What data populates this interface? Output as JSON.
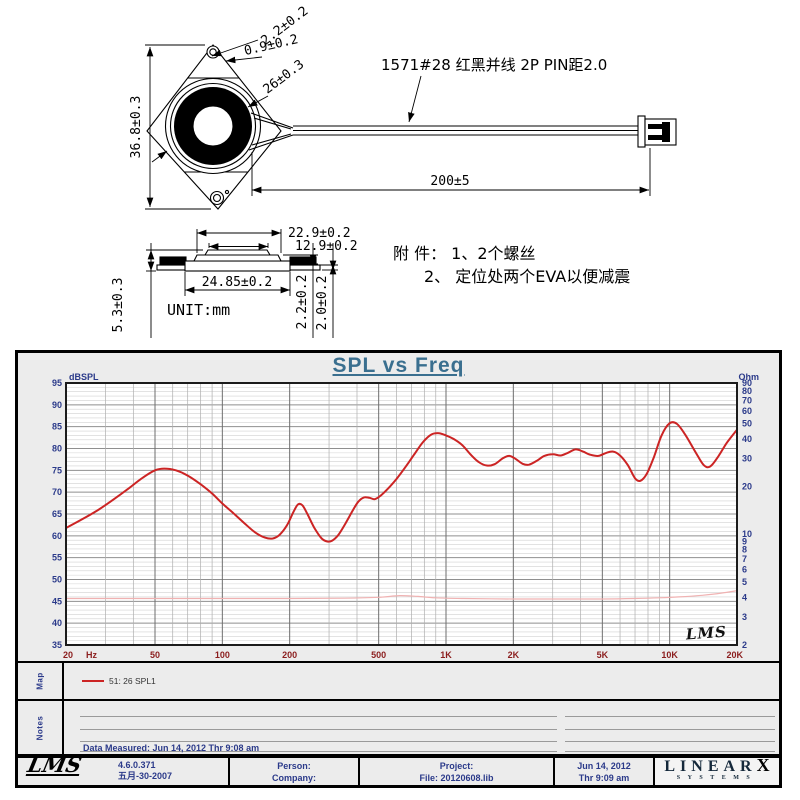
{
  "drawing": {
    "front": {
      "dim_height": "36.8±0.3",
      "dim_tab": "2.2±0.2",
      "dim_hole": "0.9±0.2",
      "dim_ring": "26±0.3",
      "dim_wire_length": "200±5",
      "wire_label": "1571#28 红黑并线 2P  PIN距2.0"
    },
    "side": {
      "dim_top_width": "22.9±0.2",
      "dim_dome_width": "12.9±0.2",
      "dim_base_width": "24.85±0.2",
      "dim_total_height": "5.3±0.3",
      "dim_dome_height": "2.2±0.2",
      "dim_base_height": "2.0±0.2",
      "unit": "UNIT:mm"
    },
    "attachment_line1": "附 件：  1、2个螺丝",
    "attachment_line2": "2、 定位处两个EVA以便减震"
  },
  "map_row": {
    "label": "Map"
  },
  "notes_row": {
    "label": "Notes",
    "data_measured": "Data Measured: Jun 14, 2012  Thr  9:08 am"
  },
  "footer": {
    "logo": "LMS",
    "version": "4.6.0.371",
    "version_date": "五月-30-2007",
    "person": "Person:",
    "company": "Company:",
    "project": "Project:",
    "file": "File: 20120608.lib",
    "date_line1": "Jun 14, 2012",
    "date_line2": "Thr  9:09 am",
    "brand_main": "LINEAR",
    "brand_x": "X",
    "brand_sub": "SYSTEMS"
  },
  "chart_data": {
    "type": "line",
    "title": "SPL vs Freq",
    "watermark": "LMS",
    "x_axis": {
      "scale": "log",
      "min": 20,
      "max": 20000,
      "unit": "Hz",
      "ticks": [
        {
          "v": 20,
          "label": "20"
        },
        {
          "v": 50,
          "label": "50"
        },
        {
          "v": 100,
          "label": "100"
        },
        {
          "v": 200,
          "label": "200"
        },
        {
          "v": 500,
          "label": "500"
        },
        {
          "v": 1000,
          "label": "1K"
        },
        {
          "v": 2000,
          "label": "2K"
        },
        {
          "v": 5000,
          "label": "5K"
        },
        {
          "v": 10000,
          "label": "10K"
        },
        {
          "v": 20000,
          "label": "20K"
        }
      ]
    },
    "y_left": {
      "label": "dBSPL",
      "min": 35,
      "max": 95,
      "step": 5
    },
    "y_right": {
      "label": "Ohm",
      "scale": "log",
      "min": 2,
      "max": 90,
      "ticks": [
        90,
        80,
        70,
        60,
        50,
        40,
        30,
        20,
        10,
        9,
        8,
        7,
        6,
        5,
        4,
        3,
        2
      ]
    },
    "grid": true,
    "legend_position": "map-strip-below",
    "series": [
      {
        "name": "51: 26 SPL1",
        "color": "#cc2424",
        "axis": "left",
        "points": [
          [
            20,
            61.8
          ],
          [
            24,
            64
          ],
          [
            28,
            66
          ],
          [
            33,
            68.5
          ],
          [
            38,
            70.8
          ],
          [
            44,
            73.3
          ],
          [
            50,
            75
          ],
          [
            55,
            75.4
          ],
          [
            62,
            75
          ],
          [
            70,
            73.8
          ],
          [
            80,
            71.8
          ],
          [
            90,
            69.7
          ],
          [
            100,
            67.4
          ],
          [
            112,
            65.2
          ],
          [
            126,
            62.8
          ],
          [
            140,
            60.8
          ],
          [
            155,
            59.6
          ],
          [
            168,
            59.4
          ],
          [
            180,
            60.2
          ],
          [
            195,
            62.5
          ],
          [
            208,
            65.5
          ],
          [
            218,
            67.2
          ],
          [
            228,
            67
          ],
          [
            240,
            65
          ],
          [
            258,
            61.8
          ],
          [
            278,
            59.4
          ],
          [
            295,
            58.7
          ],
          [
            310,
            58.9
          ],
          [
            330,
            60.2
          ],
          [
            355,
            62.8
          ],
          [
            380,
            65.5
          ],
          [
            405,
            67.8
          ],
          [
            430,
            68.8
          ],
          [
            455,
            68.7
          ],
          [
            480,
            68.4
          ],
          [
            510,
            69.2
          ],
          [
            550,
            70.8
          ],
          [
            600,
            73
          ],
          [
            660,
            75.8
          ],
          [
            720,
            78.6
          ],
          [
            790,
            81.5
          ],
          [
            860,
            83.2
          ],
          [
            930,
            83.5
          ],
          [
            1000,
            83
          ],
          [
            1080,
            82.2
          ],
          [
            1180,
            80.8
          ],
          [
            1290,
            78.6
          ],
          [
            1400,
            76.9
          ],
          [
            1520,
            76.1
          ],
          [
            1650,
            76.4
          ],
          [
            1800,
            77.8
          ],
          [
            1920,
            78.3
          ],
          [
            2050,
            77.6
          ],
          [
            2200,
            76.5
          ],
          [
            2350,
            76.3
          ],
          [
            2550,
            77.2
          ],
          [
            2750,
            78.3
          ],
          [
            3000,
            78.7
          ],
          [
            3250,
            78.4
          ],
          [
            3500,
            79
          ],
          [
            3800,
            79.8
          ],
          [
            4100,
            79.3
          ],
          [
            4400,
            78.6
          ],
          [
            4800,
            78.3
          ],
          [
            5200,
            79
          ],
          [
            5600,
            79.3
          ],
          [
            6000,
            78.4
          ],
          [
            6500,
            76.2
          ],
          [
            7000,
            73.2
          ],
          [
            7400,
            72.6
          ],
          [
            7900,
            74.2
          ],
          [
            8500,
            78
          ],
          [
            9200,
            83
          ],
          [
            10000,
            85.8
          ],
          [
            10800,
            85.6
          ],
          [
            11800,
            83
          ],
          [
            13000,
            79.3
          ],
          [
            14200,
            76.2
          ],
          [
            15200,
            75.9
          ],
          [
            16500,
            78.2
          ],
          [
            18000,
            81.3
          ],
          [
            20000,
            84.3
          ]
        ]
      },
      {
        "name": "impedance",
        "color": "#f0b2b2",
        "axis": "right",
        "points": [
          [
            20,
            3.93
          ],
          [
            50,
            3.93
          ],
          [
            100,
            3.93
          ],
          [
            200,
            3.93
          ],
          [
            350,
            3.95
          ],
          [
            500,
            4.0
          ],
          [
            620,
            4.1
          ],
          [
            750,
            4.05
          ],
          [
            900,
            3.97
          ],
          [
            1200,
            3.93
          ],
          [
            2000,
            3.9
          ],
          [
            3000,
            3.9
          ],
          [
            5000,
            3.9
          ],
          [
            7000,
            3.93
          ],
          [
            9000,
            3.97
          ],
          [
            11000,
            4.02
          ],
          [
            14000,
            4.12
          ],
          [
            17000,
            4.25
          ],
          [
            20000,
            4.4
          ]
        ]
      }
    ]
  }
}
